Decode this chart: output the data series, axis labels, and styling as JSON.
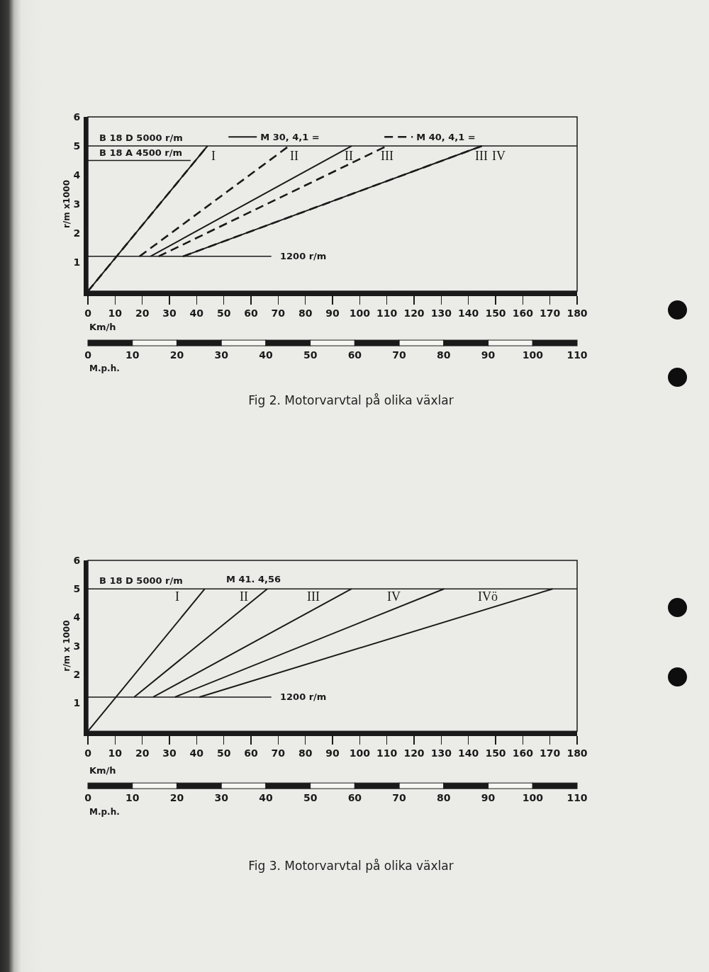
{
  "chart_data": [
    {
      "type": "line",
      "title": "Fig 2. Motorvarvtal på olika växlar",
      "xlabel": "Km/h",
      "ylabel": "r/m x1000",
      "x2label": "M.p.h.",
      "xlim": [
        0,
        180
      ],
      "xticks": [
        0,
        10,
        20,
        30,
        40,
        50,
        60,
        70,
        80,
        90,
        100,
        110,
        120,
        130,
        140,
        150,
        160,
        170,
        180
      ],
      "x2lim": [
        0,
        110
      ],
      "x2ticks": [
        0,
        10,
        20,
        30,
        40,
        50,
        60,
        70,
        80,
        90,
        100,
        110
      ],
      "ylim": [
        0,
        6
      ],
      "yticks": [
        1,
        2,
        3,
        4,
        5,
        6
      ],
      "legend": "top",
      "series": [
        {
          "name": "M 30, 4,1 =",
          "color": "#1a1a1a",
          "line_style": "solid",
          "x": [
            0,
            44
          ],
          "values": [
            0,
            5
          ]
        },
        {
          "color": "#1a1a1a",
          "line_style": "solid",
          "x": [
            23,
            97
          ],
          "values": [
            1.2,
            5
          ]
        },
        {
          "color": "#1a1a1a",
          "line_style": "solid",
          "x": [
            35,
            145
          ],
          "values": [
            1.2,
            5
          ]
        },
        {
          "name": "M 40, 4,1 =",
          "color": "#1a1a1a",
          "line_style": "dashed",
          "x": [
            0,
            44
          ],
          "values": [
            0,
            5
          ]
        },
        {
          "color": "#1a1a1a",
          "line_style": "dashed",
          "x": [
            19,
            74
          ],
          "values": [
            1.2,
            5
          ]
        },
        {
          "color": "#1a1a1a",
          "line_style": "dashed",
          "x": [
            26,
            110
          ],
          "values": [
            1.2,
            5
          ]
        },
        {
          "color": "#1a1a1a",
          "line_style": "dashed",
          "x": [
            35,
            145
          ],
          "values": [
            1.2,
            5
          ]
        }
      ],
      "ref_lines": [
        {
          "axis": "y",
          "value": 5,
          "label": "B 18 D 5000 r/m"
        },
        {
          "axis": "y",
          "value": 4.5,
          "label": "B 18 A 4500 r/m"
        },
        {
          "axis": "y",
          "value": 1.2,
          "label": "1200 r/m"
        }
      ],
      "annotations": [
        "I",
        "II",
        "II",
        "III",
        "III",
        "IV"
      ]
    },
    {
      "type": "line",
      "title": "Fig 3. Motorvarvtal på olika växlar",
      "xlabel": "Km/h",
      "ylabel": "r/m x 1000",
      "x2label": "M.p.h.",
      "xlim": [
        0,
        180
      ],
      "xticks": [
        0,
        10,
        20,
        30,
        40,
        50,
        60,
        70,
        80,
        90,
        100,
        110,
        120,
        130,
        140,
        150,
        160,
        170,
        180
      ],
      "x2lim": [
        0,
        110
      ],
      "x2ticks": [
        0,
        10,
        20,
        30,
        40,
        50,
        60,
        70,
        80,
        90,
        100,
        110
      ],
      "ylim": [
        0,
        6
      ],
      "yticks": [
        1,
        2,
        3,
        4,
        5,
        6
      ],
      "series": [
        {
          "color": "#1a1a1a",
          "x": [
            0,
            43
          ],
          "values": [
            0,
            5
          ]
        },
        {
          "color": "#1a1a1a",
          "x": [
            17,
            66
          ],
          "values": [
            1.2,
            5
          ]
        },
        {
          "color": "#1a1a1a",
          "x": [
            24,
            97
          ],
          "values": [
            1.2,
            5
          ]
        },
        {
          "color": "#1a1a1a",
          "x": [
            32,
            131
          ],
          "values": [
            1.2,
            5
          ]
        },
        {
          "color": "#1a1a1a",
          "x": [
            41,
            171
          ],
          "values": [
            1.2,
            5
          ]
        }
      ],
      "ref_lines": [
        {
          "axis": "y",
          "value": 5,
          "label": "B 18 D 5000 r/m"
        },
        {
          "axis": "y",
          "value": 1.2,
          "label": "1200 r/m"
        }
      ],
      "annotations": [
        "M 41. 4,56",
        "I",
        "II",
        "III",
        "IV",
        "IVö"
      ]
    }
  ]
}
